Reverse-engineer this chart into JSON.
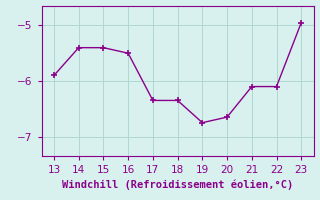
{
  "x": [
    13,
    14,
    15,
    16,
    17,
    18,
    19,
    20,
    21,
    22,
    23
  ],
  "y": [
    -5.9,
    -5.4,
    -5.4,
    -5.5,
    -6.35,
    -6.35,
    -6.75,
    -6.65,
    -6.1,
    -6.1,
    -4.95
  ],
  "line_color": "#8B008B",
  "marker": "+",
  "marker_size": 5,
  "linewidth": 1.0,
  "marker_linewidth": 1.2,
  "xlabel": "Windchill (Refroidissement éolien,°C)",
  "xlabel_color": "#8B008B",
  "xlabel_fontsize": 7.5,
  "background_color": "#d8f0ee",
  "grid_color": "#b0d8d0",
  "tick_color": "#8B008B",
  "tick_labelsize": 7.5,
  "xlim": [
    12.5,
    23.5
  ],
  "ylim": [
    -7.35,
    -4.65
  ],
  "yticks": [
    -7,
    -6,
    -5
  ],
  "xticks": [
    13,
    14,
    15,
    16,
    17,
    18,
    19,
    20,
    21,
    22,
    23
  ]
}
